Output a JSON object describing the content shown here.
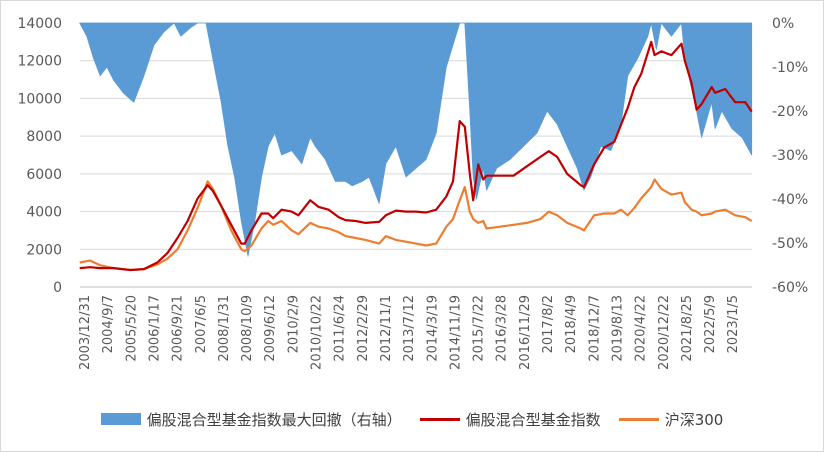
{
  "chart_data": {
    "type": "line",
    "y_left": {
      "lim": [
        0,
        14000
      ],
      "ticks": [
        "0",
        "2000",
        "4000",
        "6000",
        "8000",
        "10000",
        "12000",
        "14000"
      ]
    },
    "y_right": {
      "lim": [
        -60,
        0
      ],
      "ticks": [
        "0%",
        "-10%",
        "-20%",
        "-30%",
        "-40%",
        "-50%",
        "-60%"
      ]
    },
    "x_ticks": [
      "2003/12/31",
      "2004/9/7",
      "2005/5/20",
      "2006/1/17",
      "2006/9/21",
      "2007/6/5",
      "2008/1/31",
      "2008/10/9",
      "2009/6/12",
      "2010/2/9",
      "2010/10/22",
      "2011/6/24",
      "2012/2/29",
      "2012/11/1",
      "2013/7/12",
      "2014/3/19",
      "2014/11/19",
      "2015/7/22",
      "2016/3/28",
      "2016/11/29",
      "2017/8/2",
      "2018/4/9",
      "2018/12/7",
      "2019/8/13",
      "2020/4/22",
      "2020/12/22",
      "2021/8/25",
      "2022/5/9",
      "2023/1/5"
    ],
    "x_range": [
      "2003/12/31",
      "2023/12/31"
    ],
    "grid": true,
    "legend_position": "bottom",
    "series": [
      {
        "name": "偏股混合型基金指数最大回撤（右轴）",
        "type": "area",
        "axis": "right",
        "color": "#5b9bd5",
        "x": [
          2003.99,
          2004.2,
          2004.4,
          2004.6,
          2004.8,
          2005.0,
          2005.3,
          2005.6,
          2005.9,
          2006.2,
          2006.5,
          2006.8,
          2007.0,
          2007.3,
          2007.5,
          2007.75,
          2008.0,
          2008.2,
          2008.4,
          2008.6,
          2008.8,
          2009.0,
          2009.2,
          2009.4,
          2009.6,
          2009.8,
          2010.0,
          2010.3,
          2010.6,
          2010.85,
          2011.0,
          2011.3,
          2011.6,
          2011.9,
          2012.1,
          2012.4,
          2012.6,
          2012.9,
          2013.1,
          2013.4,
          2013.7,
          2014.0,
          2014.3,
          2014.6,
          2014.9,
          2015.1,
          2015.3,
          2015.45,
          2015.6,
          2015.7,
          2015.8,
          2016.0,
          2016.1,
          2016.4,
          2016.8,
          2017.2,
          2017.6,
          2017.9,
          2018.2,
          2018.5,
          2018.8,
          2019.0,
          2019.2,
          2019.5,
          2019.8,
          2020.1,
          2020.3,
          2020.6,
          2020.9,
          2021.0,
          2021.15,
          2021.3,
          2021.6,
          2021.9,
          2022.0,
          2022.2,
          2022.35,
          2022.5,
          2022.8,
          2022.9,
          2023.1,
          2023.4,
          2023.7,
          2023.99
        ],
        "values": [
          0,
          -3,
          -8,
          -12,
          -10,
          -13,
          -16,
          -18,
          -12,
          -5,
          -2,
          0,
          -3,
          -1,
          0,
          0,
          -10,
          -18,
          -28,
          -35,
          -45,
          -53,
          -45,
          -35,
          -28,
          -25,
          -30,
          -29,
          -32,
          -26,
          -28,
          -31,
          -36,
          -36,
          -37,
          -36,
          -35,
          -41,
          -32,
          -28,
          -35,
          -33,
          -31,
          -25,
          -10,
          -5,
          0,
          0,
          -20,
          -35,
          -40,
          -33,
          -38,
          -33,
          -31,
          -28,
          -25,
          -20,
          -23,
          -28,
          -33,
          -38,
          -35,
          -28,
          -29,
          -23,
          -12,
          -8,
          -3,
          0,
          -6,
          0,
          -3,
          0,
          -8,
          -15,
          -20,
          -26,
          -18,
          -24,
          -20,
          -24,
          -26,
          -30
        ]
      },
      {
        "name": "偏股混合型基金指数",
        "type": "line",
        "axis": "left",
        "color": "#c00000",
        "x": [
          2003.99,
          2004.3,
          2004.6,
          2005.0,
          2005.5,
          2005.9,
          2006.3,
          2006.6,
          2006.9,
          2007.2,
          2007.5,
          2007.8,
          2007.95,
          2008.2,
          2008.5,
          2008.8,
          2008.9,
          2009.1,
          2009.4,
          2009.6,
          2009.75,
          2010.0,
          2010.3,
          2010.5,
          2010.85,
          2011.1,
          2011.4,
          2011.7,
          2011.9,
          2012.2,
          2012.5,
          2012.9,
          2013.1,
          2013.4,
          2013.7,
          2014.0,
          2014.3,
          2014.6,
          2014.9,
          2015.1,
          2015.3,
          2015.45,
          2015.6,
          2015.7,
          2015.85,
          2016.0,
          2016.1,
          2016.5,
          2016.9,
          2017.3,
          2017.7,
          2017.95,
          2018.2,
          2018.5,
          2018.9,
          2019.0,
          2019.3,
          2019.6,
          2019.9,
          2020.1,
          2020.3,
          2020.5,
          2020.7,
          2021.0,
          2021.1,
          2021.3,
          2021.6,
          2021.9,
          2022.0,
          2022.2,
          2022.35,
          2022.5,
          2022.8,
          2022.9,
          2023.2,
          2023.5,
          2023.8,
          2023.99
        ],
        "values": [
          1000,
          1050,
          1000,
          1000,
          900,
          950,
          1300,
          1800,
          2600,
          3500,
          4700,
          5400,
          5100,
          4300,
          3300,
          2300,
          2300,
          3000,
          3900,
          3900,
          3650,
          4100,
          4000,
          3800,
          4600,
          4250,
          4100,
          3700,
          3550,
          3500,
          3400,
          3450,
          3800,
          4050,
          4000,
          4000,
          3950,
          4100,
          4800,
          5600,
          8800,
          8500,
          6000,
          4600,
          6500,
          5700,
          5900,
          5900,
          5900,
          6400,
          6900,
          7200,
          6900,
          6000,
          5400,
          5300,
          6500,
          7400,
          7700,
          8600,
          9500,
          10600,
          11300,
          13000,
          12300,
          12500,
          12300,
          12900,
          12000,
          10800,
          9400,
          9700,
          10600,
          10300,
          10500,
          9800,
          9800,
          9300
        ]
      },
      {
        "name": "沪深300",
        "type": "line",
        "axis": "left",
        "color": "#ed7d31",
        "x": [
          2003.99,
          2004.3,
          2004.6,
          2005.0,
          2005.5,
          2005.9,
          2006.3,
          2006.6,
          2006.9,
          2007.2,
          2007.5,
          2007.8,
          2007.95,
          2008.2,
          2008.5,
          2008.8,
          2008.9,
          2009.1,
          2009.4,
          2009.6,
          2009.75,
          2010.0,
          2010.3,
          2010.5,
          2010.85,
          2011.1,
          2011.4,
          2011.7,
          2011.9,
          2012.2,
          2012.5,
          2012.9,
          2013.1,
          2013.4,
          2013.7,
          2014.0,
          2014.3,
          2014.6,
          2014.9,
          2015.1,
          2015.3,
          2015.45,
          2015.6,
          2015.7,
          2015.85,
          2016.0,
          2016.1,
          2016.5,
          2016.9,
          2017.3,
          2017.7,
          2017.95,
          2018.2,
          2018.5,
          2018.9,
          2019.0,
          2019.3,
          2019.6,
          2019.9,
          2020.1,
          2020.3,
          2020.5,
          2020.7,
          2021.0,
          2021.1,
          2021.3,
          2021.6,
          2021.9,
          2022.0,
          2022.2,
          2022.35,
          2022.5,
          2022.8,
          2022.9,
          2023.2,
          2023.5,
          2023.8,
          2023.99
        ],
        "values": [
          1300,
          1400,
          1150,
          1000,
          900,
          950,
          1200,
          1500,
          2000,
          3000,
          4200,
          5600,
          5200,
          4300,
          3000,
          2000,
          1900,
          2200,
          3100,
          3500,
          3300,
          3500,
          3000,
          2800,
          3400,
          3200,
          3100,
          2900,
          2700,
          2600,
          2500,
          2300,
          2700,
          2500,
          2400,
          2300,
          2200,
          2300,
          3200,
          3600,
          4600,
          5300,
          4000,
          3600,
          3400,
          3500,
          3100,
          3200,
          3300,
          3400,
          3600,
          4000,
          3800,
          3400,
          3100,
          3000,
          3800,
          3900,
          3900,
          4100,
          3800,
          4200,
          4700,
          5300,
          5700,
          5200,
          4900,
          5000,
          4500,
          4100,
          4000,
          3800,
          3900,
          4000,
          4100,
          3800,
          3700,
          3500
        ]
      }
    ]
  }
}
